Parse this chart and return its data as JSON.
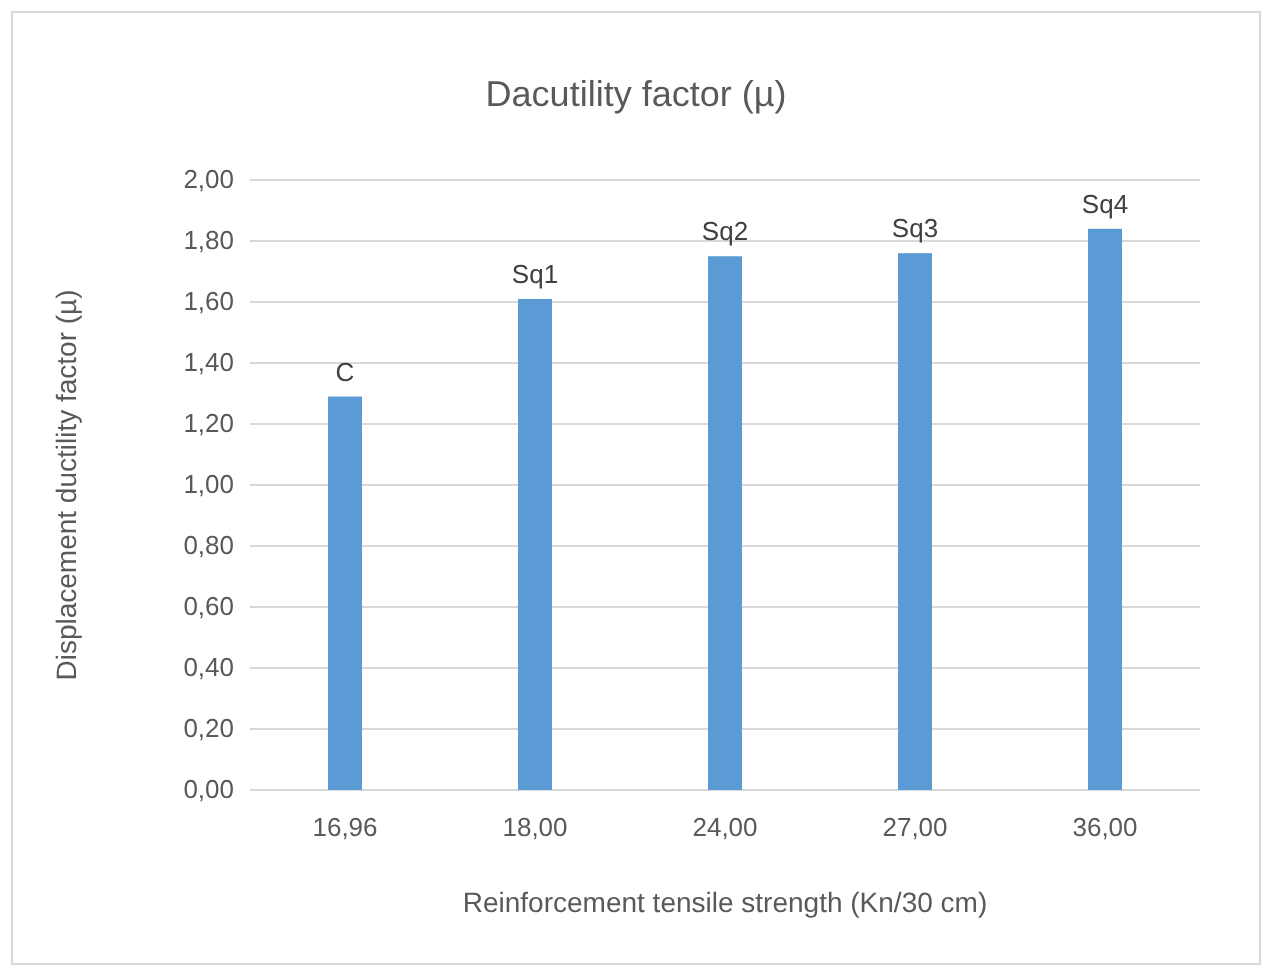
{
  "chart_data": {
    "type": "bar",
    "title": "Dacutility factor (µ)",
    "xlabel": "Reinforcement tensile strength (Kn/30 cm)",
    "ylabel": "Displacement ductility factor (µ)",
    "categories": [
      "16,96",
      "18,00",
      "24,00",
      "27,00",
      "36,00"
    ],
    "values": [
      1.29,
      1.61,
      1.75,
      1.76,
      1.84
    ],
    "color": "#5b9bd5",
    "ylim": [
      0,
      2
    ],
    "yticks": [
      {
        "value": 0,
        "label": "0,00"
      },
      {
        "value": 0.2,
        "label": "0,20"
      },
      {
        "value": 0.4,
        "label": "0,40"
      },
      {
        "value": 0.6,
        "label": "0,60"
      },
      {
        "value": 0.8,
        "label": "0,80"
      },
      {
        "value": 1,
        "label": "1,00"
      },
      {
        "value": 1.2,
        "label": "1,20"
      },
      {
        "value": 1.4,
        "label": "1,40"
      },
      {
        "value": 1.6,
        "label": "1,60"
      },
      {
        "value": 1.8,
        "label": "1,80"
      },
      {
        "value": 2,
        "label": "2,00"
      }
    ],
    "grid": "y",
    "annotations": [
      {
        "text": "C",
        "x": "16,96",
        "y": 1.29
      },
      {
        "text": "Sq1",
        "x": "18,00",
        "y": 1.61
      },
      {
        "text": "Sq2",
        "x": "24,00",
        "y": 1.75
      },
      {
        "text": "Sq3",
        "x": "27,00",
        "y": 1.76
      },
      {
        "text": "Sq4",
        "x": "36,00",
        "y": 1.84
      }
    ]
  }
}
